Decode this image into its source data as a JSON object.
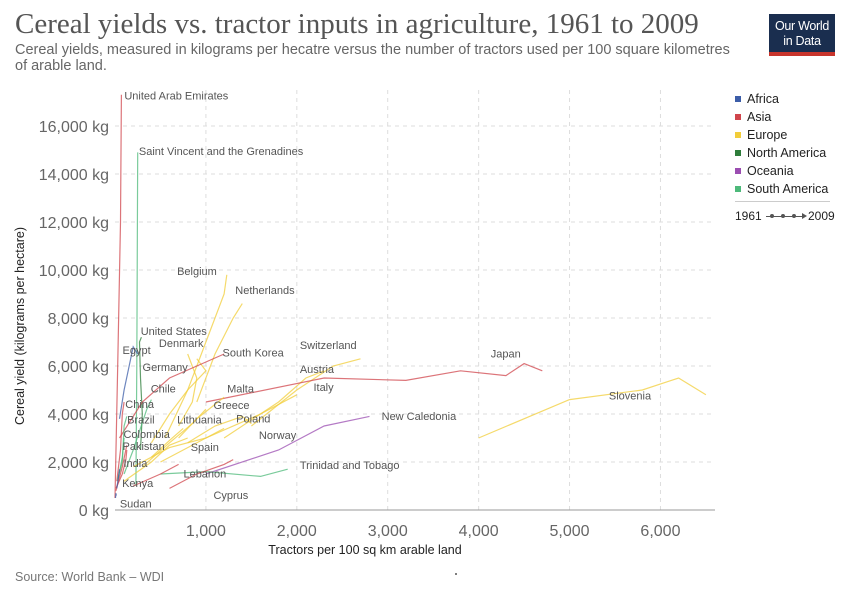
{
  "title": "Cereal yields vs. tractor inputs in agriculture, 1961 to 2009",
  "subtitle": "Cereal yields, measured in kilograms per hecatre versus the number of tractors used per 100 square kilometres of arable land.",
  "logo": {
    "line1": "Our World",
    "line2": "in Data"
  },
  "source": "Source: World Bank – WDI",
  "legend": {
    "items": [
      {
        "label": "Africa",
        "color": "#3c5da8"
      },
      {
        "label": "Asia",
        "color": "#d0454c"
      },
      {
        "label": "Europe",
        "color": "#f2cd3a"
      },
      {
        "label": "North America",
        "color": "#2e7d3b"
      },
      {
        "label": "Oceania",
        "color": "#9b4db1"
      },
      {
        "label": "South America",
        "color": "#4db97a"
      }
    ],
    "time_start": "1961",
    "time_end": "2009"
  },
  "chart_data": {
    "type": "scatter",
    "xlabel": "Tractors per 100 sq km arable land",
    "ylabel": "Cereal yield (kilograms per hectare)",
    "xlim": [
      0,
      6600
    ],
    "ylim": [
      0,
      17500
    ],
    "x_ticks": [
      1000,
      2000,
      3000,
      4000,
      5000,
      6000
    ],
    "x_tick_labels": [
      "1,000",
      "2,000",
      "3,000",
      "4,000",
      "5,000",
      "6,000"
    ],
    "y_ticks": [
      0,
      2000,
      4000,
      6000,
      8000,
      10000,
      12000,
      14000,
      16000
    ],
    "y_tick_labels": [
      "0 kg",
      "2,000 kg",
      "4,000 kg",
      "6,000 kg",
      "8,000 kg",
      "10,000 kg",
      "12,000 kg",
      "14,000 kg",
      "16,000 kg"
    ],
    "grid": true,
    "legend_position": "right",
    "series": [
      {
        "name": "United Arab Emirates",
        "region": "Asia",
        "points": [
          [
            0,
            500
          ],
          [
            30,
            6000
          ],
          [
            60,
            12000
          ],
          [
            70,
            17300
          ]
        ]
      },
      {
        "name": "Saint Vincent and the Grenadines",
        "region": "South America",
        "points": [
          [
            230,
            1000
          ],
          [
            240,
            6000
          ],
          [
            250,
            14900
          ]
        ]
      },
      {
        "name": "Belgium",
        "region": "Europe",
        "points": [
          [
            550,
            3000
          ],
          [
            800,
            5000
          ],
          [
            1000,
            7000
          ],
          [
            1200,
            9000
          ],
          [
            1230,
            9800
          ]
        ]
      },
      {
        "name": "Netherlands",
        "region": "Europe",
        "points": [
          [
            900,
            4500
          ],
          [
            1100,
            6500
          ],
          [
            1300,
            8000
          ],
          [
            1400,
            8600
          ]
        ]
      },
      {
        "name": "United States",
        "region": "North America",
        "points": [
          [
            280,
            2500
          ],
          [
            300,
            4000
          ],
          [
            280,
            5500
          ],
          [
            270,
            7000
          ],
          [
            290,
            7200
          ]
        ]
      },
      {
        "name": "Denmark",
        "region": "Europe",
        "points": [
          [
            700,
            3500
          ],
          [
            850,
            4500
          ],
          [
            900,
            5500
          ],
          [
            800,
            6500
          ]
        ]
      },
      {
        "name": "Egypt",
        "region": "Africa",
        "points": [
          [
            50,
            3800
          ],
          [
            100,
            5000
          ],
          [
            200,
            6800
          ],
          [
            250,
            6500
          ]
        ]
      },
      {
        "name": "Germany",
        "region": "Europe",
        "points": [
          [
            400,
            2800
          ],
          [
            600,
            4000
          ],
          [
            800,
            5000
          ],
          [
            1000,
            5800
          ],
          [
            900,
            6300
          ]
        ]
      },
      {
        "name": "South Korea",
        "region": "Asia",
        "points": [
          [
            50,
            3000
          ],
          [
            300,
            4500
          ],
          [
            600,
            5500
          ],
          [
            900,
            6000
          ],
          [
            1200,
            6500
          ]
        ]
      },
      {
        "name": "Switzerland",
        "region": "Europe",
        "points": [
          [
            1500,
            3500
          ],
          [
            2000,
            5000
          ],
          [
            2400,
            6000
          ],
          [
            2700,
            6300
          ]
        ]
      },
      {
        "name": "Austria",
        "region": "Europe",
        "points": [
          [
            1200,
            3000
          ],
          [
            1800,
            4500
          ],
          [
            2100,
            5500
          ],
          [
            2300,
            5800
          ]
        ]
      },
      {
        "name": "Italy",
        "region": "Europe",
        "points": [
          [
            500,
            2000
          ],
          [
            1000,
            3000
          ],
          [
            1600,
            4000
          ],
          [
            2000,
            4800
          ]
        ]
      },
      {
        "name": "Japan",
        "region": "Asia",
        "points": [
          [
            1000,
            4500
          ],
          [
            2300,
            5500
          ],
          [
            3200,
            5400
          ],
          [
            3800,
            5800
          ],
          [
            4300,
            5600
          ],
          [
            4500,
            6100
          ],
          [
            4700,
            5800
          ]
        ]
      },
      {
        "name": "Slovenia",
        "region": "Europe",
        "points": [
          [
            4000,
            3000
          ],
          [
            5000,
            4600
          ],
          [
            5800,
            5000
          ],
          [
            6200,
            5500
          ],
          [
            6500,
            4800
          ]
        ]
      },
      {
        "name": "Chile",
        "region": "South America",
        "points": [
          [
            100,
            1500
          ],
          [
            200,
            2500
          ],
          [
            350,
            4200
          ],
          [
            400,
            4600
          ]
        ]
      },
      {
        "name": "Malta",
        "region": "Europe",
        "points": [
          [
            700,
            3000
          ],
          [
            900,
            3800
          ],
          [
            1100,
            4400
          ],
          [
            1200,
            4700
          ]
        ]
      },
      {
        "name": "Greece",
        "region": "Europe",
        "points": [
          [
            300,
            1800
          ],
          [
            600,
            2800
          ],
          [
            850,
            3600
          ],
          [
            1000,
            4200
          ]
        ]
      },
      {
        "name": "Lithuania",
        "region": "Europe",
        "points": [
          [
            400,
            2200
          ],
          [
            600,
            2900
          ],
          [
            750,
            3400
          ]
        ]
      },
      {
        "name": "Poland",
        "region": "Europe",
        "points": [
          [
            200,
            1800
          ],
          [
            600,
            2600
          ],
          [
            1000,
            3000
          ],
          [
            1200,
            3400
          ]
        ]
      },
      {
        "name": "Norway",
        "region": "Europe",
        "points": [
          [
            800,
            2800
          ],
          [
            1100,
            3500
          ],
          [
            1400,
            3900
          ],
          [
            1500,
            3600
          ]
        ]
      },
      {
        "name": "New Caledonia",
        "region": "Oceania",
        "points": [
          [
            1000,
            1500
          ],
          [
            1800,
            2500
          ],
          [
            2300,
            3500
          ],
          [
            2800,
            3900
          ]
        ]
      },
      {
        "name": "China",
        "region": "Asia",
        "points": [
          [
            20,
            1200
          ],
          [
            60,
            2500
          ],
          [
            80,
            4000
          ],
          [
            100,
            4500
          ]
        ]
      },
      {
        "name": "Brazil",
        "region": "South America",
        "points": [
          [
            30,
            1300
          ],
          [
            80,
            2000
          ],
          [
            100,
            3500
          ],
          [
            130,
            3900
          ]
        ]
      },
      {
        "name": "Colombia",
        "region": "South America",
        "points": [
          [
            30,
            1200
          ],
          [
            80,
            2200
          ],
          [
            100,
            3000
          ]
        ]
      },
      {
        "name": "Pakistan",
        "region": "Asia",
        "points": [
          [
            10,
            800
          ],
          [
            80,
            1800
          ],
          [
            130,
            2700
          ]
        ]
      },
      {
        "name": "Spain",
        "region": "Europe",
        "points": [
          [
            100,
            1200
          ],
          [
            400,
            2000
          ],
          [
            600,
            2700
          ],
          [
            800,
            3000
          ]
        ]
      },
      {
        "name": "India",
        "region": "Asia",
        "points": [
          [
            10,
            900
          ],
          [
            80,
            1500
          ],
          [
            120,
            2100
          ],
          [
            130,
            2500
          ]
        ]
      },
      {
        "name": "Trinidad and Tobago",
        "region": "South America",
        "points": [
          [
            500,
            1500
          ],
          [
            1000,
            1600
          ],
          [
            1600,
            1400
          ],
          [
            1900,
            1700
          ]
        ]
      },
      {
        "name": "Lebanon",
        "region": "Asia",
        "points": [
          [
            200,
            1000
          ],
          [
            500,
            1500
          ],
          [
            700,
            1900
          ]
        ]
      },
      {
        "name": "Kenya",
        "region": "Africa",
        "points": [
          [
            20,
            900
          ],
          [
            40,
            1400
          ],
          [
            50,
            1700
          ]
        ]
      },
      {
        "name": "Cyprus",
        "region": "Asia",
        "points": [
          [
            600,
            900
          ],
          [
            900,
            1500
          ],
          [
            1200,
            1900
          ],
          [
            1300,
            2100
          ]
        ]
      },
      {
        "name": "Sudan",
        "region": "Africa",
        "points": [
          [
            5,
            500
          ],
          [
            10,
            700
          ],
          [
            15,
            600
          ]
        ]
      }
    ],
    "point_labels": [
      {
        "text": "United Arab Emirates",
        "x": 70,
        "y": 17100
      },
      {
        "text": "Saint Vincent and the Grenadines",
        "x": 230,
        "y": 14800
      },
      {
        "text": "Belgium",
        "x": 650,
        "y": 9800
      },
      {
        "text": "Netherlands",
        "x": 1290,
        "y": 9000
      },
      {
        "text": "United States",
        "x": 250,
        "y": 7300
      },
      {
        "text": "Denmark",
        "x": 450,
        "y": 6800
      },
      {
        "text": "Egypt",
        "x": 50,
        "y": 6500
      },
      {
        "text": "Germany",
        "x": 270,
        "y": 5800
      },
      {
        "text": "South Korea",
        "x": 1150,
        "y": 6400
      },
      {
        "text": "Switzerland",
        "x": 2000,
        "y": 6700
      },
      {
        "text": "Austria",
        "x": 2000,
        "y": 5700
      },
      {
        "text": "Italy",
        "x": 2150,
        "y": 4950
      },
      {
        "text": "Japan",
        "x": 4100,
        "y": 6350
      },
      {
        "text": "Slovenia",
        "x": 5400,
        "y": 4600
      },
      {
        "text": "Chile",
        "x": 360,
        "y": 4900
      },
      {
        "text": "Malta",
        "x": 1200,
        "y": 4900
      },
      {
        "text": "Greece",
        "x": 1050,
        "y": 4200
      },
      {
        "text": "Lithuania",
        "x": 650,
        "y": 3600
      },
      {
        "text": "Poland",
        "x": 1300,
        "y": 3650
      },
      {
        "text": "Norway",
        "x": 1550,
        "y": 2950
      },
      {
        "text": "New Caledonia",
        "x": 2900,
        "y": 3750
      },
      {
        "text": "China",
        "x": 80,
        "y": 4250
      },
      {
        "text": "Brazil",
        "x": 100,
        "y": 3600
      },
      {
        "text": "Colombia",
        "x": 60,
        "y": 3000
      },
      {
        "text": "Pakistan",
        "x": 50,
        "y": 2500
      },
      {
        "text": "Spain",
        "x": 800,
        "y": 2450
      },
      {
        "text": "India",
        "x": 60,
        "y": 1800
      },
      {
        "text": "Trinidad and Tobago",
        "x": 2000,
        "y": 1700
      },
      {
        "text": "Lebanon",
        "x": 720,
        "y": 1350
      },
      {
        "text": "Kenya",
        "x": 45,
        "y": 950
      },
      {
        "text": "Cyprus",
        "x": 1050,
        "y": 450
      },
      {
        "text": "Sudan",
        "x": 20,
        "y": 100
      }
    ]
  }
}
